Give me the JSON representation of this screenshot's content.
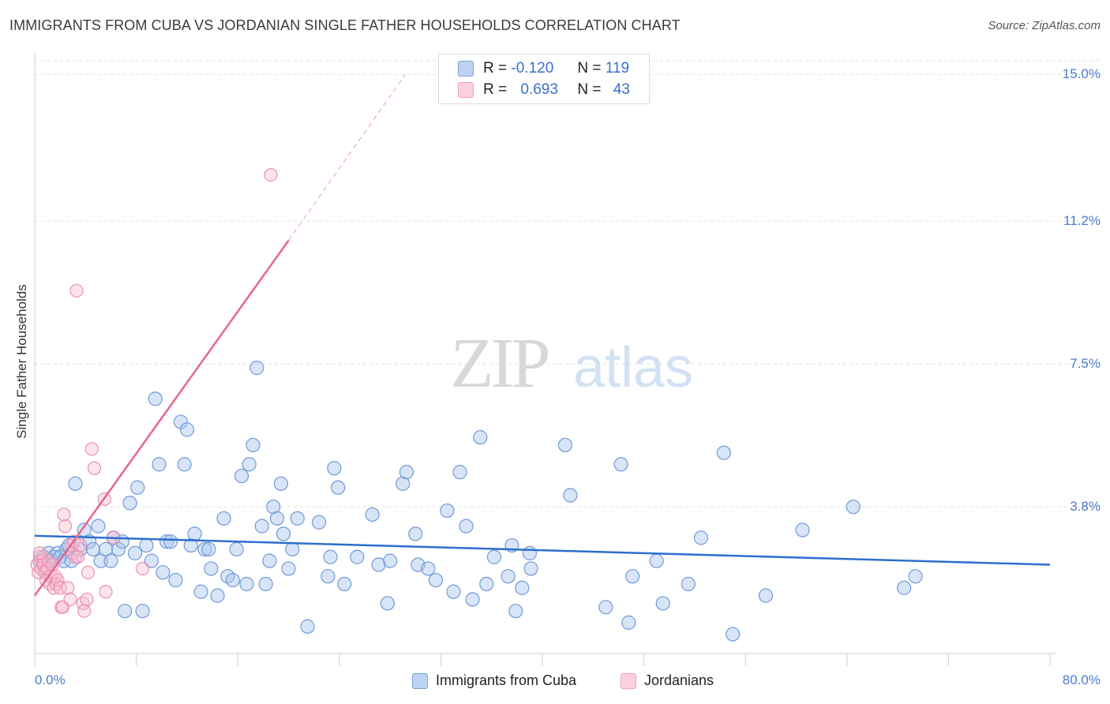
{
  "title": "IMMIGRANTS FROM CUBA VS JORDANIAN SINGLE FATHER HOUSEHOLDS CORRELATION CHART",
  "source": "Source: ZipAtlas.com",
  "watermark": {
    "zip": "ZIP",
    "atlas": "atlas"
  },
  "legend": {
    "rows": [
      {
        "r_label": "R =",
        "r_value": "-0.120",
        "n_label": "N =",
        "n_value": "119"
      },
      {
        "r_label": "R =",
        "r_value": "0.693",
        "n_label": "N =",
        "n_value": "43"
      }
    ]
  },
  "bottom_legend": {
    "cuba": "Immigrants from Cuba",
    "jordan": "Jordanians"
  },
  "colors": {
    "cuba_fill": "#a9c6ee",
    "cuba_stroke": "#6f9ad8",
    "cuba_line": "#2d6fcd",
    "jordan_fill": "#f7bcd0",
    "jordan_stroke": "#ec8fb0",
    "jordan_line": "#e5668f",
    "tick_text": "#4a7cc9"
  },
  "chart_data": {
    "type": "scatter",
    "title": "IMMIGRANTS FROM CUBA VS JORDANIAN SINGLE FATHER HOUSEHOLDS CORRELATION CHART",
    "xlabel": "",
    "ylabel": "Single Father Households",
    "xlim": [
      0,
      80
    ],
    "ylim": [
      0,
      15.5
    ],
    "x_tick_labels": [
      "0.0%",
      "80.0%"
    ],
    "y_ticks": [
      3.8,
      7.5,
      11.2,
      15.0
    ],
    "y_tick_labels": [
      "3.8%",
      "7.5%",
      "11.2%",
      "15.0%"
    ],
    "grid": true,
    "legend_position": "top-center",
    "series": [
      {
        "name": "Immigrants from Cuba",
        "R": -0.12,
        "N": 119,
        "trend": {
          "x": [
            0,
            80
          ],
          "y": [
            3.05,
            2.3
          ]
        },
        "points": [
          [
            0.4,
            2.4
          ],
          [
            0.7,
            2.5
          ],
          [
            0.9,
            2.2
          ],
          [
            1.1,
            2.6
          ],
          [
            1.3,
            2.4
          ],
          [
            1.5,
            2.5
          ],
          [
            1.8,
            2.6
          ],
          [
            2.0,
            2.5
          ],
          [
            2.3,
            2.4
          ],
          [
            2.5,
            2.7
          ],
          [
            2.7,
            2.8
          ],
          [
            2.9,
            2.4
          ],
          [
            3.2,
            4.4
          ],
          [
            3.6,
            2.7
          ],
          [
            3.9,
            3.2
          ],
          [
            4.3,
            2.9
          ],
          [
            4.6,
            2.7
          ],
          [
            5.0,
            3.3
          ],
          [
            5.2,
            2.4
          ],
          [
            5.6,
            2.7
          ],
          [
            6.0,
            2.4
          ],
          [
            6.2,
            3.0
          ],
          [
            6.6,
            2.7
          ],
          [
            6.9,
            2.9
          ],
          [
            7.1,
            1.1
          ],
          [
            7.5,
            3.9
          ],
          [
            7.9,
            2.6
          ],
          [
            8.1,
            4.3
          ],
          [
            8.5,
            1.1
          ],
          [
            8.8,
            2.8
          ],
          [
            9.2,
            2.4
          ],
          [
            9.5,
            6.6
          ],
          [
            9.8,
            4.9
          ],
          [
            10.1,
            2.1
          ],
          [
            10.4,
            2.9
          ],
          [
            10.7,
            2.9
          ],
          [
            11.1,
            1.9
          ],
          [
            11.5,
            6.0
          ],
          [
            11.8,
            4.9
          ],
          [
            12.0,
            5.8
          ],
          [
            12.3,
            2.8
          ],
          [
            12.6,
            3.1
          ],
          [
            13.1,
            1.6
          ],
          [
            13.4,
            2.7
          ],
          [
            13.7,
            2.7
          ],
          [
            13.9,
            2.2
          ],
          [
            14.4,
            1.5
          ],
          [
            14.9,
            3.5
          ],
          [
            15.2,
            2.0
          ],
          [
            15.6,
            1.9
          ],
          [
            15.9,
            2.7
          ],
          [
            16.3,
            4.6
          ],
          [
            16.7,
            1.8
          ],
          [
            16.9,
            4.9
          ],
          [
            17.2,
            5.4
          ],
          [
            17.5,
            7.4
          ],
          [
            17.9,
            3.3
          ],
          [
            18.2,
            1.8
          ],
          [
            18.5,
            2.4
          ],
          [
            18.8,
            3.8
          ],
          [
            19.1,
            3.5
          ],
          [
            19.4,
            4.4
          ],
          [
            19.6,
            3.1
          ],
          [
            20.0,
            2.2
          ],
          [
            20.3,
            2.7
          ],
          [
            20.7,
            3.5
          ],
          [
            21.5,
            0.7
          ],
          [
            22.4,
            3.4
          ],
          [
            23.1,
            2.0
          ],
          [
            23.3,
            2.5
          ],
          [
            23.6,
            4.8
          ],
          [
            23.9,
            4.3
          ],
          [
            24.4,
            1.8
          ],
          [
            25.4,
            2.5
          ],
          [
            26.6,
            3.6
          ],
          [
            27.1,
            2.3
          ],
          [
            27.8,
            1.3
          ],
          [
            28.0,
            2.4
          ],
          [
            29.0,
            4.4
          ],
          [
            29.3,
            4.7
          ],
          [
            30.0,
            3.1
          ],
          [
            30.2,
            2.3
          ],
          [
            31.0,
            2.2
          ],
          [
            31.6,
            1.9
          ],
          [
            32.5,
            3.7
          ],
          [
            33.0,
            1.6
          ],
          [
            33.5,
            4.7
          ],
          [
            34.0,
            3.3
          ],
          [
            34.5,
            1.4
          ],
          [
            35.1,
            5.6
          ],
          [
            35.6,
            1.8
          ],
          [
            36.2,
            2.5
          ],
          [
            37.3,
            2.0
          ],
          [
            37.6,
            2.8
          ],
          [
            37.9,
            1.1
          ],
          [
            38.4,
            1.7
          ],
          [
            39.0,
            2.6
          ],
          [
            39.1,
            2.2
          ],
          [
            41.8,
            5.4
          ],
          [
            42.2,
            4.1
          ],
          [
            45.0,
            1.2
          ],
          [
            46.2,
            4.9
          ],
          [
            46.8,
            0.8
          ],
          [
            47.1,
            2.0
          ],
          [
            49.0,
            2.4
          ],
          [
            49.5,
            1.3
          ],
          [
            51.5,
            1.8
          ],
          [
            52.5,
            3.0
          ],
          [
            54.3,
            5.2
          ],
          [
            55.0,
            0.5
          ],
          [
            57.6,
            1.5
          ],
          [
            60.5,
            3.2
          ],
          [
            64.5,
            3.8
          ],
          [
            68.5,
            1.7
          ],
          [
            69.4,
            2.0
          ]
        ]
      },
      {
        "name": "Jordanians",
        "R": 0.693,
        "N": 43,
        "trend": {
          "x": [
            0,
            20
          ],
          "y": [
            1.5,
            10.7
          ]
        },
        "trend_extension": {
          "x": [
            20,
            29.2
          ],
          "y": [
            10.7,
            15.0
          ]
        },
        "points": [
          [
            0.2,
            2.3
          ],
          [
            0.3,
            2.1
          ],
          [
            0.4,
            2.5
          ],
          [
            0.5,
            2.2
          ],
          [
            0.6,
            2.4
          ],
          [
            0.7,
            2.3
          ],
          [
            0.8,
            2.1
          ],
          [
            0.9,
            1.9
          ],
          [
            1.0,
            2.2
          ],
          [
            1.1,
            2.4
          ],
          [
            1.2,
            1.8
          ],
          [
            1.3,
            2.0
          ],
          [
            1.4,
            2.3
          ],
          [
            1.5,
            1.7
          ],
          [
            1.6,
            2.0
          ],
          [
            1.7,
            1.8
          ],
          [
            1.8,
            1.9
          ],
          [
            2.0,
            1.7
          ],
          [
            2.1,
            1.2
          ],
          [
            2.2,
            1.2
          ],
          [
            2.3,
            3.6
          ],
          [
            2.4,
            3.3
          ],
          [
            2.6,
            1.7
          ],
          [
            2.8,
            1.4
          ],
          [
            2.9,
            2.8
          ],
          [
            3.0,
            2.6
          ],
          [
            3.1,
            2.9
          ],
          [
            3.2,
            2.5
          ],
          [
            3.3,
            9.4
          ],
          [
            3.4,
            2.5
          ],
          [
            3.6,
            2.8
          ],
          [
            3.8,
            1.3
          ],
          [
            3.9,
            1.1
          ],
          [
            4.1,
            1.4
          ],
          [
            4.2,
            2.1
          ],
          [
            4.5,
            5.3
          ],
          [
            4.7,
            4.8
          ],
          [
            5.5,
            4.0
          ],
          [
            5.6,
            1.6
          ],
          [
            6.2,
            3.0
          ],
          [
            8.5,
            2.2
          ],
          [
            18.6,
            12.4
          ],
          [
            0.4,
            2.6
          ]
        ]
      }
    ]
  }
}
